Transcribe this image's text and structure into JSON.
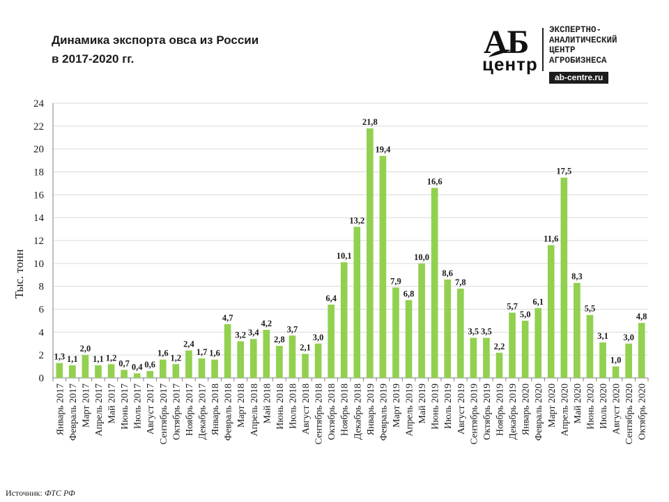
{
  "title_lines": [
    "Динамика экспорта овса из России",
    "в 2017-2020 гг."
  ],
  "logo": {
    "mark": "АБ",
    "sub": "центр",
    "lines": [
      "ЭКСПЕРТНО-",
      "АНАЛИТИЧЕСКИЙ",
      "ЦЕНТР",
      "АГРОБИЗНЕСА"
    ],
    "site": "ab-centre.ru"
  },
  "source_label": "Источник:",
  "source_value": "ФТС РФ",
  "colors": {
    "bar": "#92d050",
    "grid": "#d9d9d9",
    "axis": "#808080",
    "text": "#1a1a1a"
  },
  "chart_data": {
    "type": "bar",
    "title": "Динамика экспорта овса из России в 2017-2020 гг.",
    "xlabel": "",
    "ylabel": "Тыс. тонн",
    "ylim": [
      0,
      24
    ],
    "yticks": [
      0,
      2,
      4,
      6,
      8,
      10,
      12,
      14,
      16,
      18,
      20,
      22,
      24
    ],
    "grid": true,
    "categories": [
      "Январь 2017",
      "Февраль 2017",
      "Март 2017",
      "Апрель 2017",
      "Май 2017",
      "Июнь 2017",
      "Июль 2017",
      "Август 2017",
      "Сентябрь 2017",
      "Октябрь 2017",
      "Ноябрь 2017",
      "Декабрь 2017",
      "Январь 2018",
      "Февраль 2018",
      "Март 2018",
      "Апрель 2018",
      "Май 2018",
      "Июнь 2018",
      "Июль 2018",
      "Август 2018",
      "Сентябрь 2018",
      "Октябрь 2018",
      "Ноябрь 2018",
      "Декабрь 2018",
      "Январь 2019",
      "Февраль 2019",
      "Март 2019",
      "Апрель 2019",
      "Май 2019",
      "Июнь 2019",
      "Июль 2019",
      "Август 2019",
      "Сентябрь 2019",
      "Октябрь 2019",
      "Ноябрь 2019",
      "Декабрь 2019",
      "Январь 2020",
      "Февраль 2020",
      "Март 2020",
      "Апрель 2020",
      "Май 2020",
      "Июнь 2020",
      "Июль 2020",
      "Август 2020",
      "Сентябрь 2020",
      "Октябрь 2020"
    ],
    "values": [
      1.3,
      1.1,
      2.0,
      1.1,
      1.2,
      0.7,
      0.4,
      0.6,
      1.6,
      1.2,
      2.4,
      1.7,
      1.6,
      4.7,
      3.2,
      3.4,
      4.2,
      2.8,
      3.7,
      2.1,
      3.0,
      6.4,
      10.1,
      13.2,
      21.8,
      19.4,
      7.9,
      6.8,
      10.0,
      16.6,
      8.6,
      7.8,
      3.5,
      3.5,
      2.2,
      5.7,
      5.0,
      6.1,
      11.6,
      17.5,
      8.3,
      5.5,
      3.1,
      1.0,
      3.0,
      4.8
    ],
    "labels": [
      "1,3",
      "1,1",
      "2,0",
      "1,1",
      "1,2",
      "0,7",
      "0,4",
      "0,6",
      "1,6",
      "1,2",
      "2,4",
      "1,7",
      "1,6",
      "4,7",
      "3,2",
      "3,4",
      "4,2",
      "2,8",
      "3,7",
      "2,1",
      "3,0",
      "6,4",
      "10,1",
      "13,2",
      "21,8",
      "19,4",
      "7,9",
      "6,8",
      "10,0",
      "16,6",
      "8,6",
      "7,8",
      "3,5",
      "3,5",
      "2,2",
      "5,7",
      "5,0",
      "6,1",
      "11,6",
      "17,5",
      "8,3",
      "5,5",
      "3,1",
      "1,0",
      "3,0",
      "4,8"
    ]
  }
}
